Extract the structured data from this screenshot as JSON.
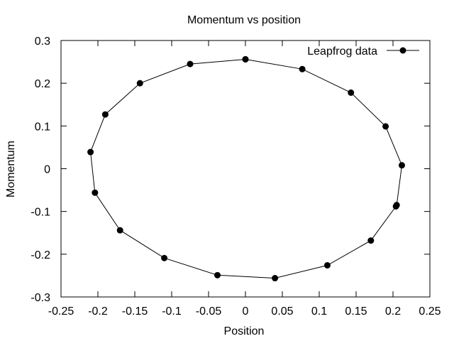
{
  "chart_data": {
    "type": "line",
    "title": "Momentum vs position",
    "xlabel": "Position",
    "ylabel": "Momentum",
    "xlim": [
      -0.25,
      0.25
    ],
    "ylim": [
      -0.3,
      0.3
    ],
    "xticks": [
      -0.25,
      -0.2,
      -0.15,
      -0.1,
      -0.05,
      0,
      0.05,
      0.1,
      0.15,
      0.2,
      0.25
    ],
    "xtick_labels": [
      "-0.25",
      "-0.2",
      "-0.15",
      "-0.1",
      "-0.05",
      "0",
      "0.05",
      "0.1",
      "0.15",
      "0.2",
      "0.25"
    ],
    "yticks": [
      -0.3,
      -0.2,
      -0.1,
      0,
      0.1,
      0.2,
      0.3
    ],
    "ytick_labels": [
      "-0.3",
      "-0.2",
      "-0.1",
      "0",
      "0.1",
      "0.2",
      "0.3"
    ],
    "grid": false,
    "legend_position": "top-right",
    "series": [
      {
        "name": "Leapfrog data",
        "color": "#000000",
        "marker": "circle",
        "points": [
          [
            0.0,
            0.256
          ],
          [
            0.077,
            0.233
          ],
          [
            0.143,
            0.178
          ],
          [
            0.19,
            0.099
          ],
          [
            0.212,
            0.008
          ],
          [
            0.205,
            -0.085
          ],
          [
            0.204,
            -0.088
          ],
          [
            0.17,
            -0.168
          ],
          [
            0.111,
            -0.226
          ],
          [
            0.04,
            -0.256
          ],
          [
            -0.038,
            -0.249
          ],
          [
            -0.11,
            -0.209
          ],
          [
            -0.17,
            -0.144
          ],
          [
            -0.204,
            -0.056
          ],
          [
            -0.21,
            0.039
          ],
          [
            -0.19,
            0.127
          ],
          [
            -0.143,
            0.2
          ],
          [
            -0.075,
            0.245
          ],
          [
            0.0,
            0.256
          ]
        ]
      }
    ]
  }
}
